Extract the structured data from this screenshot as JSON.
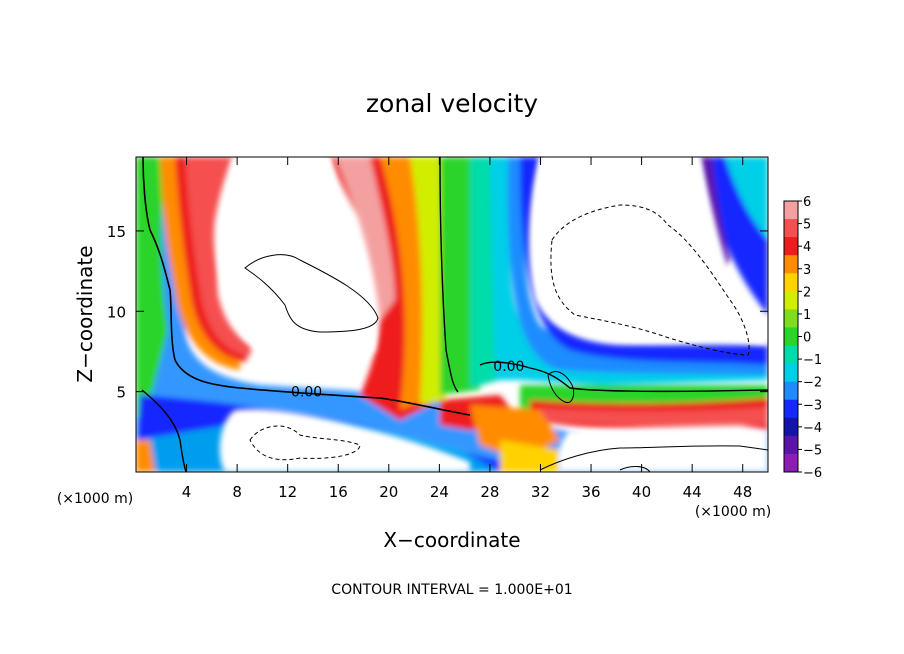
{
  "chart_data": {
    "type": "heatmap",
    "title": "zonal velocity",
    "xlabel": "X−coordinate",
    "ylabel": "Z−coordinate",
    "x_unit_left": "(×1000 m)",
    "x_unit_right": "(×1000 m)",
    "xlim": [
      0,
      50
    ],
    "ylim": [
      0,
      19.6
    ],
    "xticks": [
      4,
      8,
      12,
      16,
      20,
      24,
      28,
      32,
      36,
      40,
      44,
      48
    ],
    "yticks": [
      5,
      10,
      15
    ],
    "colorbar": {
      "levels": [
        6,
        5,
        4,
        3,
        2,
        1,
        0,
        -1,
        -2,
        -3,
        -4,
        -5,
        -6
      ],
      "labels": [
        "6",
        "5",
        "4",
        "3",
        "2",
        "1",
        "0",
        "−1",
        "−2",
        "−3",
        "−4",
        "−5",
        "−6"
      ],
      "colors": [
        "#f4a0a0",
        "#f55050",
        "#ee1c1c",
        "#ff8c00",
        "#ffd200",
        "#d2ee00",
        "#7fdd1e",
        "#2ad42a",
        "#00dcaa",
        "#00cfe8",
        "#1e8cff",
        "#1428ff",
        "#1414aa",
        "#5a14aa",
        "#8c1eb4"
      ]
    },
    "contour_labels": [
      {
        "text": "0.00",
        "x": 13.5,
        "z": 5.0
      },
      {
        "text": "0.00",
        "x": 29.5,
        "z": 6.6
      }
    ],
    "footer": "CONTOUR INTERVAL = 1.000E+01"
  }
}
